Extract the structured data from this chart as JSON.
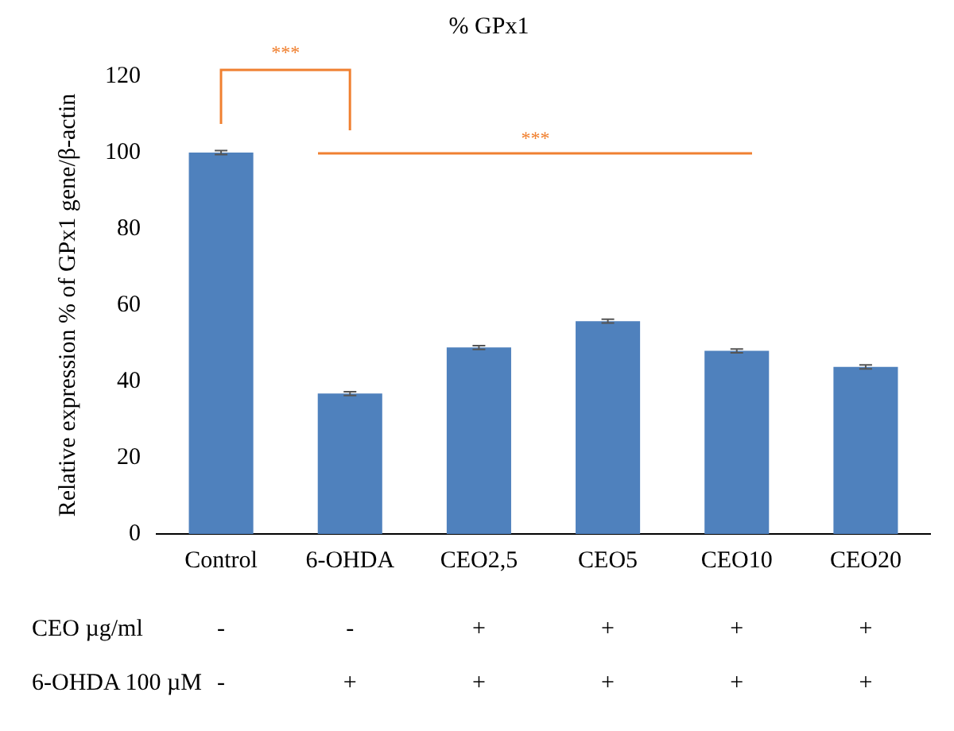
{
  "chart_data": {
    "type": "bar",
    "title": "% GPx1",
    "ylabel": "Relative expression % of GPx1 gene/β-actin",
    "categories": [
      "Control",
      "6-OHDA",
      "CEO2,5",
      "CEO5",
      "CEO10",
      "CEO20"
    ],
    "values": [
      100,
      36.8,
      48.9,
      55.8,
      48,
      43.8
    ],
    "errors": [
      0.5,
      0.5,
      0.5,
      0.5,
      0.5,
      0.5
    ],
    "color": "#4f81bd",
    "ylim": [
      0,
      120
    ],
    "yticks": [
      0,
      20,
      40,
      60,
      80,
      100,
      120
    ],
    "grid": false,
    "legend": false,
    "annotations": [
      "***",
      "***",
      "CEO µg/ml",
      "-",
      "-",
      "+",
      "+",
      "+",
      "+",
      "6-OHDA 100 µM",
      "-",
      "+",
      "+",
      "+",
      "+",
      "+"
    ]
  }
}
